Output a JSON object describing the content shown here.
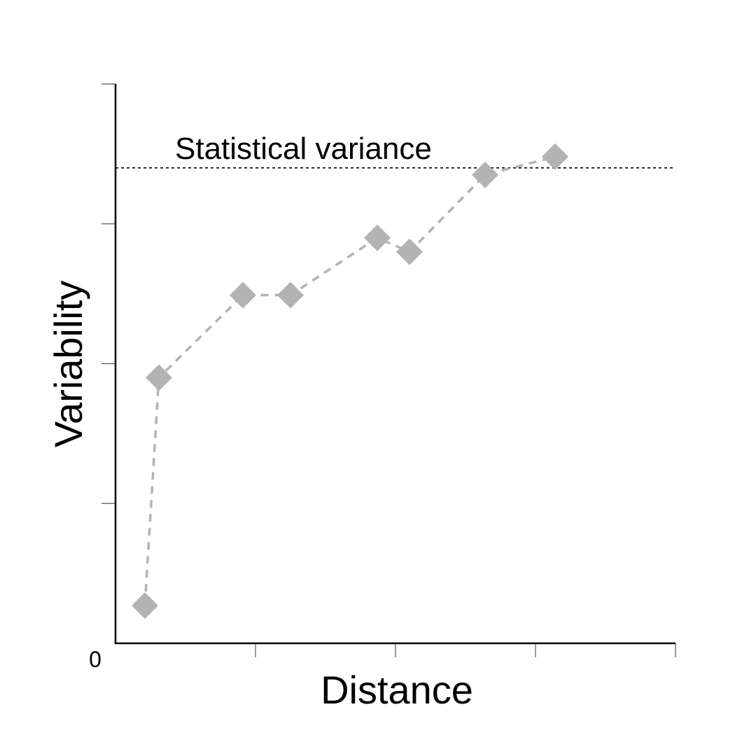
{
  "chart_data": {
    "type": "scatter",
    "title": "",
    "xlabel": "Distance",
    "ylabel": "Variability",
    "origin_label": "0",
    "xlim": [
      0,
      4
    ],
    "ylim": [
      0,
      4
    ],
    "x_ticks": [
      1,
      2,
      3,
      4
    ],
    "y_ticks": [
      1,
      2,
      3,
      4
    ],
    "grid": false,
    "series": [
      {
        "marker": "diamond",
        "line_style": "dashed",
        "color": "#b3b3b3",
        "points": [
          {
            "x": 0.21,
            "y": 0.27
          },
          {
            "x": 0.31,
            "y": 1.9
          },
          {
            "x": 0.91,
            "y": 2.49
          },
          {
            "x": 1.25,
            "y": 2.49
          },
          {
            "x": 1.87,
            "y": 2.9
          },
          {
            "x": 2.1,
            "y": 2.8
          },
          {
            "x": 2.64,
            "y": 3.35
          },
          {
            "x": 3.14,
            "y": 3.48
          }
        ]
      }
    ],
    "reference_line": {
      "label": "Statistical variance",
      "y": 3.4,
      "line_style": "dotted",
      "color": "#000000"
    }
  }
}
